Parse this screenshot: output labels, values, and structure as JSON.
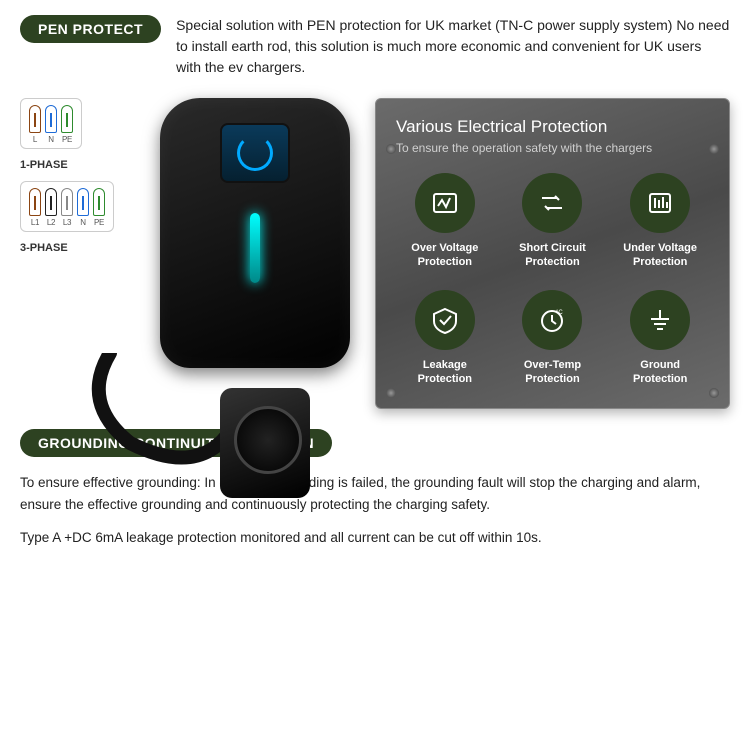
{
  "colors": {
    "pill_bg": "#2d4221",
    "pill_text": "#ffffff",
    "body_text": "#222222",
    "panel_bg_from": "#6b6b6b",
    "panel_bg_to": "#4a4a4a",
    "panel_title": "#ffffff",
    "panel_sub": "#d0d0d0",
    "icon_circle_bg": "#2d4221",
    "led": "#00ffff",
    "fuse_brown": "#8b4513",
    "fuse_blue": "#1e6bd6",
    "fuse_green": "#2e8b2e",
    "fuse_black": "#222222",
    "fuse_grey": "#888888"
  },
  "pen_protect": {
    "pill": "PEN PROTECT",
    "text": "Special solution with PEN protection for UK market (TN-C power supply system) No need to install earth rod, this solution is much more economic and convenient for UK users with the ev chargers."
  },
  "phases": {
    "one": {
      "caption": "1-PHASE",
      "fuses": [
        {
          "color": "#8b4513",
          "label": "L"
        },
        {
          "color": "#1e6bd6",
          "label": "N"
        },
        {
          "color": "#2e8b2e",
          "label": "PE"
        }
      ]
    },
    "three": {
      "caption": "3-PHASE",
      "fuses": [
        {
          "color": "#8b4513",
          "label": "L1"
        },
        {
          "color": "#222222",
          "label": "L2"
        },
        {
          "color": "#888888",
          "label": "L3"
        },
        {
          "color": "#1e6bd6",
          "label": "N"
        },
        {
          "color": "#2e8b2e",
          "label": "PE"
        }
      ]
    }
  },
  "panel": {
    "title": "Various Electrical Protection",
    "subtitle": "To ensure the operation safety with the chargers",
    "items": [
      {
        "icon": "over-voltage-icon",
        "label": "Over Voltage Protection"
      },
      {
        "icon": "short-circuit-icon",
        "label": "Short Circuit Protection"
      },
      {
        "icon": "under-voltage-icon",
        "label": "Under Voltage Protection"
      },
      {
        "icon": "leakage-icon",
        "label": "Leakage Protection"
      },
      {
        "icon": "over-temp-icon",
        "label": "Over-Temp Protection"
      },
      {
        "icon": "ground-icon",
        "label": "Ground Protection"
      }
    ]
  },
  "grounding": {
    "pill": "GROUNDING CONTINUITY DETECTION",
    "para1": "To ensure effective grounding: In case the grounding is failed, the grounding fault will stop the charging and alarm, ensure the effective grounding and continuously protecting the charging safety.",
    "para2": "Type A +DC 6mA leakage protection monitored and all current can be cut off within 10s."
  }
}
